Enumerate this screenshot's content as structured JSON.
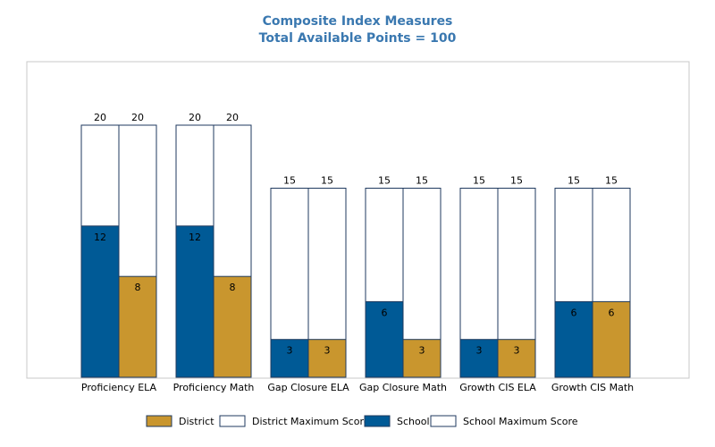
{
  "title": "Composite Index Measures",
  "subtitle": "Total Available Points = 100",
  "colors": {
    "school": "#005a96",
    "district": "#c9962e",
    "max_fill": "#ffffff",
    "outline": "#1f3a5f",
    "title": "#3a78b0"
  },
  "legend": [
    {
      "key": "district",
      "label": "District"
    },
    {
      "key": "district_max",
      "label": "District Maximum Score"
    },
    {
      "key": "school",
      "label": "School"
    },
    {
      "key": "school_max",
      "label": "School Maximum Score"
    }
  ],
  "chart_data": {
    "type": "bar",
    "categories": [
      "Proficiency ELA",
      "Proficiency Math",
      "Gap Closure ELA",
      "Gap Closure Math",
      "Growth CIS ELA",
      "Growth CIS Math"
    ],
    "series": [
      {
        "name": "School",
        "values": [
          12,
          12,
          3,
          6,
          3,
          6
        ]
      },
      {
        "name": "School Maximum Score",
        "values": [
          20,
          20,
          15,
          15,
          15,
          15
        ]
      },
      {
        "name": "District",
        "values": [
          8,
          8,
          3,
          3,
          3,
          6
        ]
      },
      {
        "name": "District Maximum Score",
        "values": [
          20,
          20,
          15,
          15,
          15,
          15
        ]
      }
    ],
    "ylim": [
      0,
      20
    ],
    "grid": false,
    "legend_position": "bottom"
  }
}
